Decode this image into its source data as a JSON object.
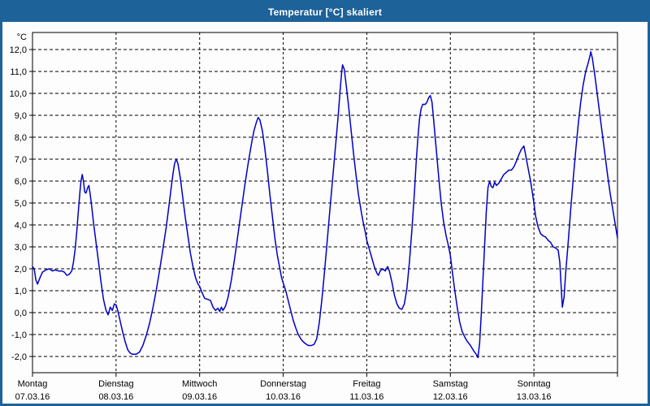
{
  "window": {
    "title": "Temperatur [°C] skaliert",
    "titlebar_color": "#1d6298",
    "border_color": "#1d6298",
    "background_color": "#fcfdfc"
  },
  "chart_data": {
    "type": "line",
    "title": "Temperatur [°C] skaliert",
    "unit_label": "°C",
    "ylabel": "Temperatur [°C]",
    "xlabel": "",
    "ylim": [
      -2.0,
      12.0
    ],
    "ytick_step": 1.0,
    "ytick_labels": [
      "12,0",
      "11,0",
      "10,0",
      "9,0",
      "8,0",
      "7,0",
      "6,0",
      "5,0",
      "4,0",
      "3,0",
      "2,0",
      "1,0",
      "0,0",
      "-1,0",
      "-2,0"
    ],
    "grid": "dashed-black-on-white",
    "legend_position": "none",
    "line_color": "#0000c8",
    "axis_color": "#000000",
    "categories": [
      {
        "label": "Montag",
        "date": "07.03.16"
      },
      {
        "label": "Dienstag",
        "date": "08.03.16"
      },
      {
        "label": "Mittwoch",
        "date": "09.03.16"
      },
      {
        "label": "Donnerstag",
        "date": "10.03.16"
      },
      {
        "label": "Freitag",
        "date": "11.03.16"
      },
      {
        "label": "Samstag",
        "date": "12.03.16"
      },
      {
        "label": "Sonntag",
        "date": "13.03.16"
      }
    ],
    "x_unit": "days",
    "x_range_days": [
      0,
      7
    ],
    "series": [
      {
        "name": "Temperatur",
        "points": [
          [
            0.0,
            2.1
          ],
          [
            0.02,
            2.0
          ],
          [
            0.04,
            1.5
          ],
          [
            0.06,
            1.3
          ],
          [
            0.09,
            1.6
          ],
          [
            0.12,
            1.85
          ],
          [
            0.16,
            1.95
          ],
          [
            0.2,
            2.0
          ],
          [
            0.24,
            1.9
          ],
          [
            0.27,
            1.95
          ],
          [
            0.31,
            1.9
          ],
          [
            0.35,
            1.9
          ],
          [
            0.38,
            1.85
          ],
          [
            0.41,
            1.7
          ],
          [
            0.44,
            1.75
          ],
          [
            0.47,
            1.9
          ],
          [
            0.49,
            2.3
          ],
          [
            0.51,
            2.9
          ],
          [
            0.53,
            3.7
          ],
          [
            0.55,
            4.7
          ],
          [
            0.57,
            5.6
          ],
          [
            0.58,
            6.0
          ],
          [
            0.595,
            6.3
          ],
          [
            0.61,
            6.0
          ],
          [
            0.625,
            5.5
          ],
          [
            0.64,
            5.45
          ],
          [
            0.66,
            5.7
          ],
          [
            0.675,
            5.8
          ],
          [
            0.69,
            5.4
          ],
          [
            0.71,
            4.8
          ],
          [
            0.73,
            4.1
          ],
          [
            0.76,
            3.2
          ],
          [
            0.79,
            2.3
          ],
          [
            0.82,
            1.4
          ],
          [
            0.85,
            0.6
          ],
          [
            0.88,
            0.1
          ],
          [
            0.905,
            -0.1
          ],
          [
            0.93,
            0.25
          ],
          [
            0.955,
            0.1
          ],
          [
            0.98,
            0.4
          ],
          [
            1.0,
            0.35
          ],
          [
            1.02,
            0.1
          ],
          [
            1.05,
            -0.4
          ],
          [
            1.08,
            -0.9
          ],
          [
            1.11,
            -1.35
          ],
          [
            1.14,
            -1.7
          ],
          [
            1.17,
            -1.85
          ],
          [
            1.2,
            -1.9
          ],
          [
            1.24,
            -1.9
          ],
          [
            1.28,
            -1.8
          ],
          [
            1.32,
            -1.5
          ],
          [
            1.36,
            -1.05
          ],
          [
            1.4,
            -0.5
          ],
          [
            1.44,
            0.2
          ],
          [
            1.48,
            1.0
          ],
          [
            1.52,
            1.9
          ],
          [
            1.56,
            2.9
          ],
          [
            1.6,
            3.9
          ],
          [
            1.63,
            4.8
          ],
          [
            1.66,
            5.7
          ],
          [
            1.68,
            6.3
          ],
          [
            1.7,
            6.8
          ],
          [
            1.72,
            7.0
          ],
          [
            1.74,
            6.8
          ],
          [
            1.77,
            6.1
          ],
          [
            1.8,
            5.2
          ],
          [
            1.83,
            4.3
          ],
          [
            1.86,
            3.5
          ],
          [
            1.89,
            2.7
          ],
          [
            1.92,
            2.1
          ],
          [
            1.95,
            1.6
          ],
          [
            1.98,
            1.3
          ],
          [
            2.0,
            1.2
          ],
          [
            2.03,
            0.9
          ],
          [
            2.06,
            0.65
          ],
          [
            2.1,
            0.6
          ],
          [
            2.13,
            0.55
          ],
          [
            2.16,
            0.25
          ],
          [
            2.19,
            0.1
          ],
          [
            2.22,
            0.2
          ],
          [
            2.24,
            0.05
          ],
          [
            2.26,
            0.25
          ],
          [
            2.28,
            0.1
          ],
          [
            2.31,
            0.3
          ],
          [
            2.34,
            0.7
          ],
          [
            2.38,
            1.5
          ],
          [
            2.42,
            2.5
          ],
          [
            2.46,
            3.6
          ],
          [
            2.5,
            4.7
          ],
          [
            2.54,
            5.8
          ],
          [
            2.58,
            6.8
          ],
          [
            2.62,
            7.7
          ],
          [
            2.65,
            8.3
          ],
          [
            2.68,
            8.7
          ],
          [
            2.7,
            8.9
          ],
          [
            2.72,
            8.8
          ],
          [
            2.75,
            8.3
          ],
          [
            2.78,
            7.5
          ],
          [
            2.81,
            6.5
          ],
          [
            2.84,
            5.4
          ],
          [
            2.87,
            4.4
          ],
          [
            2.9,
            3.4
          ],
          [
            2.93,
            2.6
          ],
          [
            2.96,
            2.0
          ],
          [
            2.98,
            1.6
          ],
          [
            3.0,
            1.35
          ],
          [
            3.03,
            1.0
          ],
          [
            3.06,
            0.55
          ],
          [
            3.09,
            0.1
          ],
          [
            3.12,
            -0.35
          ],
          [
            3.15,
            -0.7
          ],
          [
            3.18,
            -1.0
          ],
          [
            3.22,
            -1.25
          ],
          [
            3.26,
            -1.4
          ],
          [
            3.3,
            -1.5
          ],
          [
            3.34,
            -1.5
          ],
          [
            3.37,
            -1.45
          ],
          [
            3.4,
            -1.2
          ],
          [
            3.43,
            -0.5
          ],
          [
            3.46,
            0.5
          ],
          [
            3.49,
            1.7
          ],
          [
            3.52,
            3.0
          ],
          [
            3.55,
            4.3
          ],
          [
            3.58,
            5.6
          ],
          [
            3.61,
            6.9
          ],
          [
            3.64,
            8.2
          ],
          [
            3.66,
            9.1
          ],
          [
            3.68,
            10.1
          ],
          [
            3.7,
            11.0
          ],
          [
            3.71,
            11.3
          ],
          [
            3.73,
            11.1
          ],
          [
            3.75,
            10.5
          ],
          [
            3.78,
            9.5
          ],
          [
            3.81,
            8.4
          ],
          [
            3.84,
            7.3
          ],
          [
            3.87,
            6.3
          ],
          [
            3.9,
            5.4
          ],
          [
            3.93,
            4.7
          ],
          [
            3.955,
            4.15
          ],
          [
            3.98,
            3.7
          ],
          [
            4.0,
            3.3
          ],
          [
            4.03,
            2.9
          ],
          [
            4.06,
            2.5
          ],
          [
            4.09,
            2.1
          ],
          [
            4.12,
            1.8
          ],
          [
            4.14,
            1.7
          ],
          [
            4.16,
            1.9
          ],
          [
            4.19,
            2.0
          ],
          [
            4.22,
            1.9
          ],
          [
            4.25,
            2.1
          ],
          [
            4.27,
            1.9
          ],
          [
            4.3,
            1.4
          ],
          [
            4.33,
            0.8
          ],
          [
            4.36,
            0.4
          ],
          [
            4.39,
            0.2
          ],
          [
            4.42,
            0.15
          ],
          [
            4.45,
            0.4
          ],
          [
            4.48,
            1.1
          ],
          [
            4.51,
            2.3
          ],
          [
            4.54,
            3.8
          ],
          [
            4.57,
            5.5
          ],
          [
            4.59,
            6.8
          ],
          [
            4.61,
            7.9
          ],
          [
            4.63,
            8.8
          ],
          [
            4.65,
            9.3
          ],
          [
            4.67,
            9.5
          ],
          [
            4.7,
            9.5
          ],
          [
            4.72,
            9.6
          ],
          [
            4.74,
            9.8
          ],
          [
            4.76,
            9.9
          ],
          [
            4.78,
            9.6
          ],
          [
            4.8,
            8.8
          ],
          [
            4.83,
            7.5
          ],
          [
            4.86,
            6.2
          ],
          [
            4.89,
            5.0
          ],
          [
            4.92,
            4.1
          ],
          [
            4.95,
            3.5
          ],
          [
            4.98,
            3.0
          ],
          [
            5.0,
            2.6
          ],
          [
            5.02,
            2.0
          ],
          [
            5.05,
            1.1
          ],
          [
            5.08,
            0.3
          ],
          [
            5.11,
            -0.4
          ],
          [
            5.14,
            -0.85
          ],
          [
            5.17,
            -1.1
          ],
          [
            5.2,
            -1.3
          ],
          [
            5.24,
            -1.5
          ],
          [
            5.28,
            -1.75
          ],
          [
            5.31,
            -1.9
          ],
          [
            5.33,
            -2.05
          ],
          [
            5.35,
            -1.4
          ],
          [
            5.37,
            -0.1
          ],
          [
            5.39,
            1.5
          ],
          [
            5.41,
            3.1
          ],
          [
            5.43,
            4.6
          ],
          [
            5.45,
            5.7
          ],
          [
            5.47,
            6.0
          ],
          [
            5.49,
            5.75
          ],
          [
            5.51,
            5.7
          ],
          [
            5.53,
            5.95
          ],
          [
            5.55,
            5.8
          ],
          [
            5.58,
            5.9
          ],
          [
            5.61,
            6.1
          ],
          [
            5.64,
            6.3
          ],
          [
            5.67,
            6.4
          ],
          [
            5.7,
            6.5
          ],
          [
            5.73,
            6.5
          ],
          [
            5.76,
            6.65
          ],
          [
            5.79,
            6.9
          ],
          [
            5.82,
            7.2
          ],
          [
            5.85,
            7.45
          ],
          [
            5.88,
            7.6
          ],
          [
            5.9,
            7.2
          ],
          [
            5.93,
            6.6
          ],
          [
            5.96,
            6.0
          ],
          [
            5.98,
            5.5
          ],
          [
            6.0,
            5.0
          ],
          [
            6.02,
            4.4
          ],
          [
            6.05,
            3.9
          ],
          [
            6.08,
            3.6
          ],
          [
            6.11,
            3.5
          ],
          [
            6.14,
            3.45
          ],
          [
            6.17,
            3.3
          ],
          [
            6.2,
            3.2
          ],
          [
            6.23,
            3.0
          ],
          [
            6.26,
            2.95
          ],
          [
            6.29,
            2.85
          ],
          [
            6.31,
            2.3
          ],
          [
            6.33,
            0.9
          ],
          [
            6.34,
            0.25
          ],
          [
            6.36,
            0.7
          ],
          [
            6.38,
            1.8
          ],
          [
            6.41,
            3.2
          ],
          [
            6.44,
            4.7
          ],
          [
            6.47,
            6.1
          ],
          [
            6.5,
            7.4
          ],
          [
            6.53,
            8.6
          ],
          [
            6.56,
            9.6
          ],
          [
            6.59,
            10.4
          ],
          [
            6.62,
            11.0
          ],
          [
            6.65,
            11.4
          ],
          [
            6.67,
            11.7
          ],
          [
            6.68,
            11.9
          ],
          [
            6.7,
            11.6
          ],
          [
            6.73,
            10.8
          ],
          [
            6.76,
            9.9
          ],
          [
            6.79,
            9.0
          ],
          [
            6.82,
            8.1
          ],
          [
            6.85,
            7.2
          ],
          [
            6.88,
            6.3
          ],
          [
            6.91,
            5.5
          ],
          [
            6.94,
            4.8
          ],
          [
            6.97,
            4.1
          ],
          [
            7.0,
            3.4
          ]
        ]
      }
    ]
  }
}
